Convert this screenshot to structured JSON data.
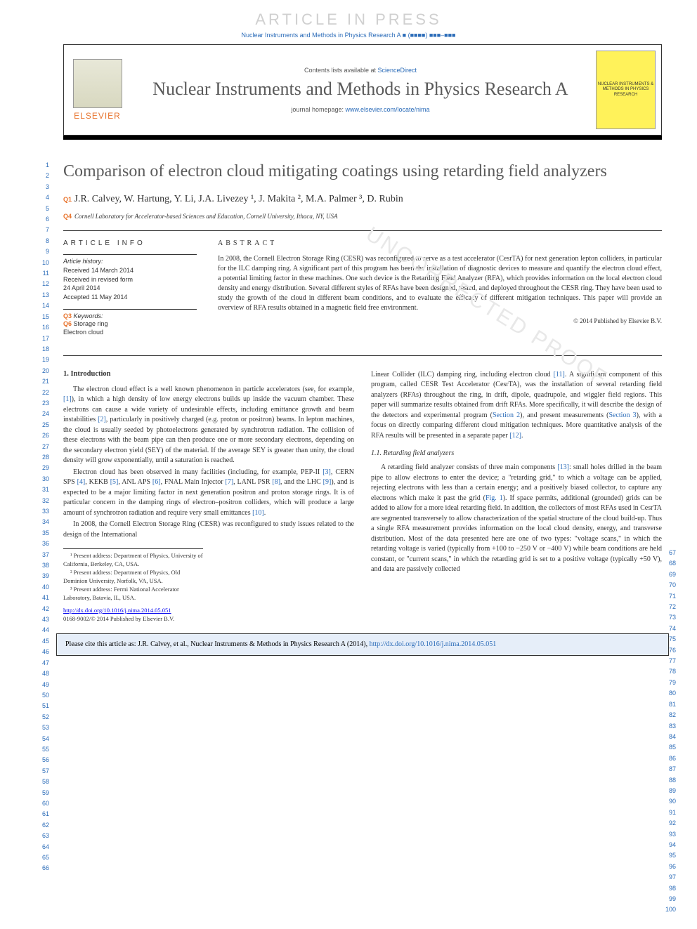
{
  "watermark": "ARTICLE IN PRESS",
  "header_citation": "Nuclear Instruments and Methods in Physics Research A ■ (■■■■) ■■■–■■■",
  "contents_text": "Contents lists available at ",
  "contents_link": "ScienceDirect",
  "journal_title": "Nuclear Instruments and Methods in Physics Research A",
  "homepage_label": "journal homepage: ",
  "homepage_url": "www.elsevier.com/locate/nima",
  "publisher_logo_text": "ELSEVIER",
  "cover_thumb_text": "NUCLEAR INSTRUMENTS & METHODS IN PHYSICS RESEARCH",
  "article_title": "Comparison of electron cloud mitigating coatings using retarding field analyzers",
  "q_markers": {
    "q1": "Q1",
    "q3": "Q3",
    "q4": "Q4",
    "q6": "Q6"
  },
  "authors": "J.R. Calvey, W. Hartung, Y. Li, J.A. Livezey ¹, J. Makita ², M.A. Palmer ³, D. Rubin",
  "affiliation": "Cornell Laboratory for Accelerator-based Sciences and Education, Cornell University, Ithaca, NY, USA",
  "info_heading": "ARTICLE INFO",
  "history_title": "Article history:",
  "history_lines": [
    "Received 14 March 2014",
    "Received in revised form",
    "24 April 2014",
    "Accepted 11 May 2014"
  ],
  "keywords_title": "Keywords:",
  "keywords": [
    "Storage ring",
    "Electron cloud"
  ],
  "abstract_heading": "ABSTRACT",
  "abstract_text": "In 2008, the Cornell Electron Storage Ring (CESR) was reconfigured to serve as a test accelerator (CesrTA) for next generation lepton colliders, in particular for the ILC damping ring. A significant part of this program has been the installation of diagnostic devices to measure and quantify the electron cloud effect, a potential limiting factor in these machines. One such device is the Retarding Field Analyzer (RFA), which provides information on the local electron cloud density and energy distribution. Several different styles of RFAs have been designed, tested, and deployed throughout the CESR ring. They have been used to study the growth of the cloud in different beam conditions, and to evaluate the efficacy of different mitigation techniques. This paper will provide an overview of RFA results obtained in a magnetic field free environment.",
  "copyright": "© 2014 Published by Elsevier B.V.",
  "section1_heading": "1. Introduction",
  "para1": "The electron cloud effect is a well known phenomenon in particle accelerators (see, for example, [1]), in which a high density of low energy electrons builds up inside the vacuum chamber. These electrons can cause a wide variety of undesirable effects, including emittance growth and beam instabilities [2], particularly in positively charged (e.g. proton or positron) beams. In lepton machines, the cloud is usually seeded by photoelectrons generated by synchrotron radiation. The collision of these electrons with the beam pipe can then produce one or more secondary electrons, depending on the secondary electron yield (SEY) of the material. If the average SEY is greater than unity, the cloud density will grow exponentially, until a saturation is reached.",
  "para2": "Electron cloud has been observed in many facilities (including, for example, PEP-II [3], CERN SPS [4], KEKB [5], ANL APS [6], FNAL Main Injector [7], LANL PSR [8], and the LHC [9]), and is expected to be a major limiting factor in next generation positron and proton storage rings. It is of particular concern in the damping rings of electron–positron colliders, which will produce a large amount of synchrotron radiation and require very small emittances [10].",
  "para3": "In 2008, the Cornell Electron Storage Ring (CESR) was reconfigured to study issues related to the design of the International",
  "para4": "Linear Collider (ILC) damping ring, including electron cloud [11]. A significant component of this program, called CESR Test Accelerator (CesrTA), was the installation of several retarding field analyzers (RFAs) throughout the ring, in drift, dipole, quadrupole, and wiggler field regions. This paper will summarize results obtained from drift RFAs. More specifically, it will describe the design of the detectors and experimental program (Section 2), and present measurements (Section 3), with a focus on directly comparing different cloud mitigation techniques. More quantitative analysis of the RFA results will be presented in a separate paper [12].",
  "section11_heading": "1.1. Retarding field analyzers",
  "para5": "A retarding field analyzer consists of three main components [13]: small holes drilled in the beam pipe to allow electrons to enter the device; a \"retarding grid,\" to which a voltage can be applied, rejecting electrons with less than a certain energy; and a positively biased collector, to capture any electrons which make it past the grid (Fig. 1). If space permits, additional (grounded) grids can be added to allow for a more ideal retarding field. In addition, the collectors of most RFAs used in CesrTA are segmented transversely to allow characterization of the spatial structure of the cloud build-up. Thus a single RFA measurement provides information on the local cloud density, energy, and transverse distribution. Most of the data presented here are one of two types: \"voltage scans,\" in which the retarding voltage is varied (typically from +100 to −250 V or −400 V) while beam conditions are held constant, or \"current scans,\" in which the retarding grid is set to a positive voltage (typically +50 V), and data are passively collected",
  "footnotes": [
    "¹ Present address: Department of Physics, University of California, Berkeley, CA, USA.",
    "² Present address: Department of Physics, Old Dominion University, Norfolk, VA, USA.",
    "³ Present address: Fermi National Accelerator Laboratory, Batavia, IL, USA."
  ],
  "doi": "http://dx.doi.org/10.1016/j.nima.2014.05.051",
  "issn": "0168-9002/© 2014 Published by Elsevier B.V.",
  "cite_box_prefix": "Please cite this article as: J.R. Calvey, et al., Nuclear Instruments & Methods in Physics Research A (2014), ",
  "cite_box_link": "http://dx.doi.org/10.1016/j.nima.2014.05.051",
  "line_numbers_left": {
    "start": 1,
    "end": 66
  },
  "line_numbers_right": {
    "start": 67,
    "end": 100
  },
  "colors": {
    "link": "#2a6bb8",
    "orange": "#e8732c",
    "watermark": "#d0d0d0",
    "thumb_bg": "#fff25a",
    "citebox_bg": "#e6eef9"
  },
  "typography": {
    "title_size_pt": 24,
    "journal_title_size_pt": 26,
    "body_size_pt": 10,
    "footnote_size_pt": 8.5
  }
}
